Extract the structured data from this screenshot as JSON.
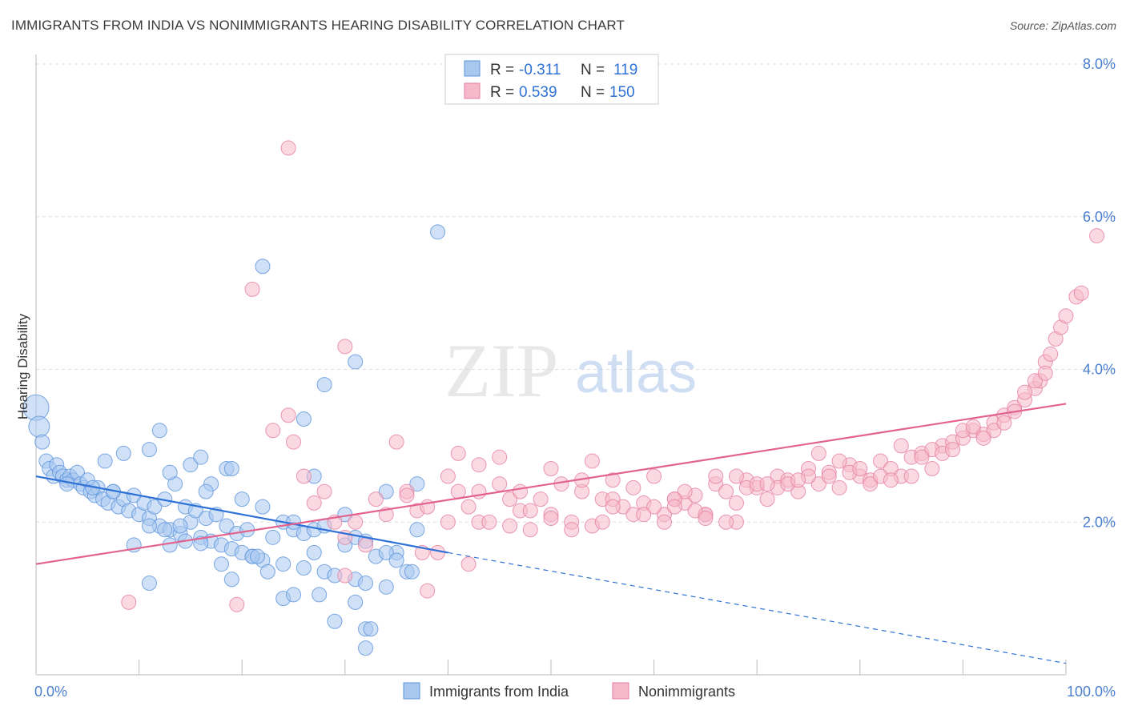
{
  "title": "IMMIGRANTS FROM INDIA VS NONIMMIGRANTS HEARING DISABILITY CORRELATION CHART",
  "source": "Source: ZipAtlas.com",
  "watermark": {
    "zip": "ZIP",
    "atlas": "atlas"
  },
  "colors": {
    "blue_fill": "#a9c8f0",
    "blue_stroke": "#5b93dc",
    "blue_line": "#2f72d6",
    "pink_fill": "#f6b9cc",
    "pink_stroke": "#e57fa0",
    "pink_line": "#e2648e",
    "tick_text": "#4a7fd0",
    "grid": "#dddddd"
  },
  "stats": {
    "r_label": "R =",
    "n_label": "N =",
    "blue": {
      "r": "-0.311",
      "n": "119"
    },
    "pink": {
      "r": "0.539",
      "n": "150"
    }
  },
  "chart_data": {
    "type": "scatter",
    "title": "IMMIGRANTS FROM INDIA VS NONIMMIGRANTS HEARING DISABILITY CORRELATION CHART",
    "xlabel": "",
    "ylabel": "Hearing Disability",
    "xlim": [
      0,
      100
    ],
    "ylim": [
      0,
      8.0
    ],
    "x_tick_labels": [
      "0.0%",
      "100.0%"
    ],
    "y_ticks": [
      2.0,
      4.0,
      6.0,
      8.0
    ],
    "y_tick_labels": [
      "2.0%",
      "4.0%",
      "6.0%",
      "8.0%"
    ],
    "grid": true,
    "legend_position": "bottom-center",
    "series": [
      {
        "name": "Immigrants from India",
        "color": "#a9c8f0",
        "trend": {
          "x": [
            0,
            40
          ],
          "y": [
            2.6,
            1.6
          ],
          "dashed_extension_to": [
            100,
            0.15
          ]
        },
        "points": [
          [
            0,
            3.5
          ],
          [
            0.3,
            3.25
          ],
          [
            0.6,
            3.05
          ],
          [
            1,
            2.8
          ],
          [
            1.3,
            2.7
          ],
          [
            1.7,
            2.6
          ],
          [
            2,
            2.75
          ],
          [
            2.3,
            2.65
          ],
          [
            2.6,
            2.6
          ],
          [
            3,
            2.55
          ],
          [
            3.3,
            2.6
          ],
          [
            3.6,
            2.55
          ],
          [
            4,
            2.65
          ],
          [
            4.3,
            2.5
          ],
          [
            4.6,
            2.45
          ],
          [
            5,
            2.55
          ],
          [
            5.3,
            2.4
          ],
          [
            5.7,
            2.35
          ],
          [
            6,
            2.45
          ],
          [
            6.5,
            2.3
          ],
          [
            7,
            2.25
          ],
          [
            7.5,
            2.4
          ],
          [
            8,
            2.2
          ],
          [
            8.5,
            2.3
          ],
          [
            9,
            2.15
          ],
          [
            9.5,
            2.35
          ],
          [
            10,
            2.1
          ],
          [
            10.5,
            2.25
          ],
          [
            11,
            2.05
          ],
          [
            11.5,
            2.2
          ],
          [
            12,
            1.95
          ],
          [
            12.5,
            2.3
          ],
          [
            13,
            1.9
          ],
          [
            13.5,
            2.5
          ],
          [
            14,
            1.85
          ],
          [
            14.5,
            2.2
          ],
          [
            15,
            2.0
          ],
          [
            15.5,
            2.15
          ],
          [
            16,
            1.8
          ],
          [
            16.5,
            2.05
          ],
          [
            17,
            1.75
          ],
          [
            17.5,
            2.1
          ],
          [
            18,
            1.7
          ],
          [
            18.5,
            1.95
          ],
          [
            19,
            1.65
          ],
          [
            19.5,
            1.85
          ],
          [
            20,
            1.6
          ],
          [
            20.5,
            1.9
          ],
          [
            21,
            1.55
          ],
          [
            22,
            1.5
          ],
          [
            23,
            1.8
          ],
          [
            24,
            1.45
          ],
          [
            25,
            1.9
          ],
          [
            26,
            1.4
          ],
          [
            27,
            1.6
          ],
          [
            28,
            1.35
          ],
          [
            29,
            1.3
          ],
          [
            30,
            1.7
          ],
          [
            31,
            1.25
          ],
          [
            32,
            1.2
          ],
          [
            33,
            1.55
          ],
          [
            34,
            1.15
          ],
          [
            35,
            1.6
          ],
          [
            36,
            1.35
          ],
          [
            37,
            1.9
          ],
          [
            6.7,
            2.8
          ],
          [
            8.5,
            2.9
          ],
          [
            11,
            2.95
          ],
          [
            12,
            3.2
          ],
          [
            13,
            2.65
          ],
          [
            15,
            2.75
          ],
          [
            16,
            2.85
          ],
          [
            17,
            2.5
          ],
          [
            18.5,
            2.7
          ],
          [
            19,
            2.7
          ],
          [
            22,
            2.2
          ],
          [
            24,
            2.0
          ],
          [
            25,
            2.0
          ],
          [
            26,
            1.85
          ],
          [
            27,
            1.9
          ],
          [
            28,
            1.95
          ],
          [
            30,
            2.1
          ],
          [
            31,
            1.8
          ],
          [
            32,
            1.75
          ],
          [
            34,
            1.6
          ],
          [
            35,
            1.5
          ],
          [
            36.5,
            1.35
          ],
          [
            9.5,
            1.7
          ],
          [
            11,
            1.2
          ],
          [
            13,
            1.7
          ],
          [
            14.5,
            1.75
          ],
          [
            16,
            1.72
          ],
          [
            18,
            1.45
          ],
          [
            19,
            1.25
          ],
          [
            21,
            1.55
          ],
          [
            22.5,
            1.35
          ],
          [
            24,
            1.0
          ],
          [
            25,
            1.05
          ],
          [
            27.5,
            1.05
          ],
          [
            29,
            0.7
          ],
          [
            31,
            0.95
          ],
          [
            32,
            0.6
          ],
          [
            32.5,
            0.6
          ],
          [
            32,
            0.35
          ],
          [
            3,
            2.5
          ],
          [
            5.5,
            2.45
          ],
          [
            7.5,
            2.4
          ],
          [
            11,
            1.95
          ],
          [
            12.5,
            1.9
          ],
          [
            14,
            1.95
          ],
          [
            16.5,
            2.4
          ],
          [
            20,
            2.3
          ],
          [
            21.5,
            1.55
          ],
          [
            28,
            3.8
          ],
          [
            31,
            4.1
          ],
          [
            22,
            5.35
          ],
          [
            39,
            5.8
          ],
          [
            26,
            3.35
          ],
          [
            34,
            2.4
          ],
          [
            37,
            2.5
          ],
          [
            27,
            2.6
          ]
        ]
      },
      {
        "name": "Nonimmigrants",
        "color": "#f6b9cc",
        "trend": {
          "x": [
            0,
            100
          ],
          "y": [
            1.45,
            3.55
          ]
        },
        "points": [
          [
            9,
            0.95
          ],
          [
            19.5,
            0.92
          ],
          [
            24.5,
            6.9
          ],
          [
            21,
            5.05
          ],
          [
            30,
            4.3
          ],
          [
            30,
            1.3
          ],
          [
            38,
            1.1
          ],
          [
            37.5,
            1.6
          ],
          [
            42,
            1.45
          ],
          [
            23,
            3.2
          ],
          [
            24.5,
            3.4
          ],
          [
            25,
            3.05
          ],
          [
            26,
            2.6
          ],
          [
            27,
            2.25
          ],
          [
            28,
            2.4
          ],
          [
            29,
            2.0
          ],
          [
            30,
            1.8
          ],
          [
            31,
            2.0
          ],
          [
            32,
            1.7
          ],
          [
            33,
            2.3
          ],
          [
            34,
            2.1
          ],
          [
            35,
            3.05
          ],
          [
            36,
            2.4
          ],
          [
            37,
            2.15
          ],
          [
            38,
            2.2
          ],
          [
            39,
            1.6
          ],
          [
            40,
            2.0
          ],
          [
            41,
            2.4
          ],
          [
            42,
            2.2
          ],
          [
            43,
            2.0
          ],
          [
            44,
            2.0
          ],
          [
            45,
            2.5
          ],
          [
            46,
            1.95
          ],
          [
            47,
            2.15
          ],
          [
            48,
            1.9
          ],
          [
            49,
            2.3
          ],
          [
            50,
            2.1
          ],
          [
            51,
            2.5
          ],
          [
            52,
            2.0
          ],
          [
            53,
            2.4
          ],
          [
            54,
            1.95
          ],
          [
            55,
            2.3
          ],
          [
            56,
            2.55
          ],
          [
            57,
            2.2
          ],
          [
            58,
            2.45
          ],
          [
            59,
            2.25
          ],
          [
            60,
            2.6
          ],
          [
            61,
            2.1
          ],
          [
            62,
            2.3
          ],
          [
            63,
            2.25
          ],
          [
            64,
            2.35
          ],
          [
            65,
            2.1
          ],
          [
            66,
            2.5
          ],
          [
            67,
            2.4
          ],
          [
            68,
            2.25
          ],
          [
            69,
            2.55
          ],
          [
            70,
            2.45
          ],
          [
            71,
            2.3
          ],
          [
            72,
            2.6
          ],
          [
            73,
            2.55
          ],
          [
            74,
            2.4
          ],
          [
            75,
            2.7
          ],
          [
            76,
            2.5
          ],
          [
            77,
            2.65
          ],
          [
            78,
            2.45
          ],
          [
            79,
            2.75
          ],
          [
            80,
            2.6
          ],
          [
            81,
            2.55
          ],
          [
            82,
            2.8
          ],
          [
            83,
            2.7
          ],
          [
            84,
            2.6
          ],
          [
            85,
            2.85
          ],
          [
            86,
            2.9
          ],
          [
            87,
            2.7
          ],
          [
            88,
            3.0
          ],
          [
            89,
            3.05
          ],
          [
            90,
            3.1
          ],
          [
            91,
            3.2
          ],
          [
            92,
            3.15
          ],
          [
            93,
            3.3
          ],
          [
            94,
            3.4
          ],
          [
            95,
            3.5
          ],
          [
            96,
            3.6
          ],
          [
            97,
            3.75
          ],
          [
            97.5,
            3.85
          ],
          [
            98,
            4.1
          ],
          [
            98.5,
            4.2
          ],
          [
            99,
            4.4
          ],
          [
            99.5,
            4.55
          ],
          [
            100,
            4.7
          ],
          [
            101,
            4.95
          ],
          [
            101.5,
            5.0
          ],
          [
            103,
            5.75
          ],
          [
            36,
            2.35
          ],
          [
            40,
            2.6
          ],
          [
            43,
            2.4
          ],
          [
            46,
            2.3
          ],
          [
            50,
            2.7
          ],
          [
            54,
            2.8
          ],
          [
            56,
            2.3
          ],
          [
            60,
            2.2
          ],
          [
            63,
            2.4
          ],
          [
            66,
            2.6
          ],
          [
            69,
            2.45
          ],
          [
            72,
            2.45
          ],
          [
            75,
            2.6
          ],
          [
            78,
            2.8
          ],
          [
            81,
            2.5
          ],
          [
            84,
            3.0
          ],
          [
            87,
            2.95
          ],
          [
            90,
            3.2
          ],
          [
            93,
            3.2
          ],
          [
            96,
            3.7
          ],
          [
            62,
            2.3
          ],
          [
            65,
            2.1
          ],
          [
            68,
            2.0
          ],
          [
            45,
            2.85
          ],
          [
            48,
            2.15
          ],
          [
            52,
            1.9
          ],
          [
            55,
            2.0
          ],
          [
            58,
            2.1
          ],
          [
            61,
            2.0
          ],
          [
            64,
            2.15
          ],
          [
            67,
            2.0
          ],
          [
            70,
            2.5
          ],
          [
            73,
            2.5
          ],
          [
            76,
            2.9
          ],
          [
            79,
            2.65
          ],
          [
            82,
            2.6
          ],
          [
            85,
            2.6
          ],
          [
            88,
            2.9
          ],
          [
            91,
            3.25
          ],
          [
            94,
            3.3
          ],
          [
            97,
            3.85
          ],
          [
            41,
            2.9
          ],
          [
            43,
            2.75
          ],
          [
            47,
            2.4
          ],
          [
            50,
            2.05
          ],
          [
            53,
            2.55
          ],
          [
            56,
            2.2
          ],
          [
            59,
            2.1
          ],
          [
            62,
            2.2
          ],
          [
            65,
            2.05
          ],
          [
            68,
            2.6
          ],
          [
            71,
            2.5
          ],
          [
            74,
            2.55
          ],
          [
            77,
            2.6
          ],
          [
            80,
            2.7
          ],
          [
            83,
            2.55
          ],
          [
            86,
            2.85
          ],
          [
            89,
            2.95
          ],
          [
            92,
            3.1
          ],
          [
            95,
            3.45
          ],
          [
            98,
            3.95
          ]
        ]
      }
    ]
  },
  "legend": {
    "items": [
      "Immigrants from India",
      "Nonimmigrants"
    ]
  }
}
